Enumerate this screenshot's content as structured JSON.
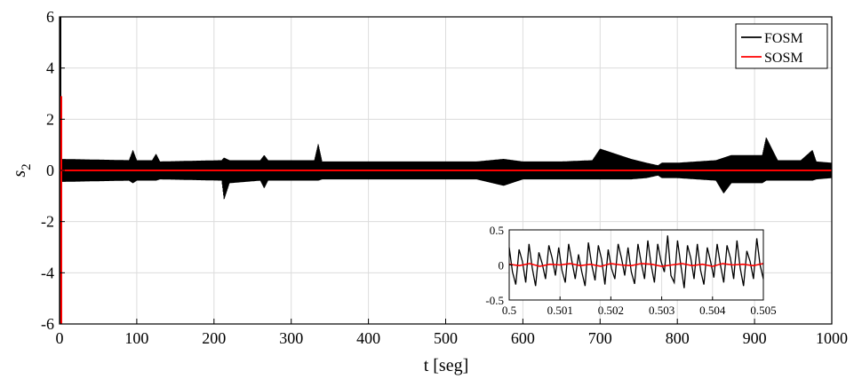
{
  "chart_data": {
    "type": "line",
    "title": "",
    "xlabel": "t [seg]",
    "ylabel": "s",
    "ylabel_subscript": "2",
    "xlim": [
      0,
      1000
    ],
    "ylim": [
      -6,
      6
    ],
    "xticks": [
      "0",
      "100",
      "200",
      "300",
      "400",
      "500",
      "600",
      "700",
      "800",
      "900",
      "1000"
    ],
    "yticks": [
      "-6",
      "-4",
      "-2",
      "0",
      "2",
      "4",
      "6"
    ],
    "grid": true,
    "legend_placement": "top-right",
    "series": [
      {
        "name": "FOSM",
        "color": "#000000",
        "band": {
          "x": [
            0,
            90,
            95,
            100,
            120,
            125,
            130,
            210,
            213,
            220,
            260,
            265,
            270,
            330,
            335,
            340,
            400,
            480,
            540,
            575,
            600,
            650,
            690,
            700,
            740,
            760,
            775,
            780,
            790,
            800,
            850,
            860,
            870,
            910,
            915,
            930,
            960,
            975,
            980,
            1000
          ],
          "upper": [
            0.45,
            0.4,
            0.8,
            0.4,
            0.4,
            0.65,
            0.35,
            0.4,
            0.5,
            0.4,
            0.4,
            0.6,
            0.4,
            0.4,
            1.05,
            0.35,
            0.35,
            0.35,
            0.35,
            0.45,
            0.35,
            0.35,
            0.4,
            0.85,
            0.45,
            0.3,
            0.2,
            0.3,
            0.3,
            0.3,
            0.4,
            0.5,
            0.6,
            0.6,
            1.3,
            0.4,
            0.4,
            0.8,
            0.35,
            0.3
          ],
          "lower": [
            -0.45,
            -0.4,
            -0.5,
            -0.4,
            -0.4,
            -0.4,
            -0.35,
            -0.4,
            -1.15,
            -0.5,
            -0.4,
            -0.7,
            -0.4,
            -0.4,
            -0.4,
            -0.35,
            -0.35,
            -0.35,
            -0.35,
            -0.6,
            -0.35,
            -0.35,
            -0.35,
            -0.35,
            -0.35,
            -0.3,
            -0.2,
            -0.3,
            -0.3,
            -0.3,
            -0.4,
            -0.9,
            -0.5,
            -0.5,
            -0.4,
            -0.4,
            -0.4,
            -0.4,
            -0.35,
            -0.3
          ]
        },
        "initial_spike": [
          -6,
          6
        ]
      },
      {
        "name": "SOSM",
        "color": "#ff0000",
        "x": [
          0,
          1000
        ],
        "values": [
          0,
          0
        ],
        "initial_spike": [
          -6,
          2.9
        ]
      }
    ],
    "inset": {
      "xlim": [
        0.5,
        0.505
      ],
      "ylim": [
        -0.5,
        0.5
      ],
      "xticks": [
        "0.5",
        "0.501",
        "0.502",
        "0.503",
        "0.504",
        "0.505"
      ],
      "yticks": [
        "-0.5",
        "0",
        "0.5"
      ],
      "grid": true,
      "fosm_values": [
        0.25,
        -0.1,
        -0.28,
        0.22,
        0.05,
        -0.25,
        0.3,
        -0.05,
        -0.3,
        0.18,
        0.02,
        -0.2,
        0.28,
        0.1,
        -0.15,
        0.25,
        -0.08,
        -0.25,
        0.3,
        0.05,
        -0.2,
        0.15,
        -0.1,
        -0.3,
        0.32,
        0.0,
        -0.22,
        0.28,
        0.08,
        -0.28,
        0.22,
        -0.05,
        -0.2,
        0.3,
        0.1,
        -0.15,
        0.25,
        -0.1,
        -0.27,
        0.3,
        0.03,
        -0.2,
        0.35,
        0.0,
        -0.25,
        0.3,
        0.05,
        -0.1,
        0.42,
        -0.15,
        -0.25,
        0.35,
        0.0,
        -0.33,
        0.28,
        0.1,
        -0.2,
        0.3,
        -0.08,
        -0.28,
        0.25,
        0.05,
        -0.18,
        0.3,
        0.0,
        -0.25,
        0.28,
        0.1,
        -0.2,
        0.35,
        -0.05,
        -0.3,
        0.2,
        0.05,
        -0.2,
        0.38,
        0.0,
        -0.2
      ],
      "sosm_values": [
        0.01,
        -0.01,
        0.02,
        -0.02,
        0.01,
        0.0,
        0.02,
        -0.01,
        0.01,
        -0.02,
        0.02,
        0.0,
        -0.01,
        0.02,
        0.01,
        -0.02,
        0.0,
        0.02,
        -0.01,
        0.01,
        -0.02,
        0.02,
        0.0,
        0.01,
        -0.01,
        0.02
      ]
    }
  }
}
